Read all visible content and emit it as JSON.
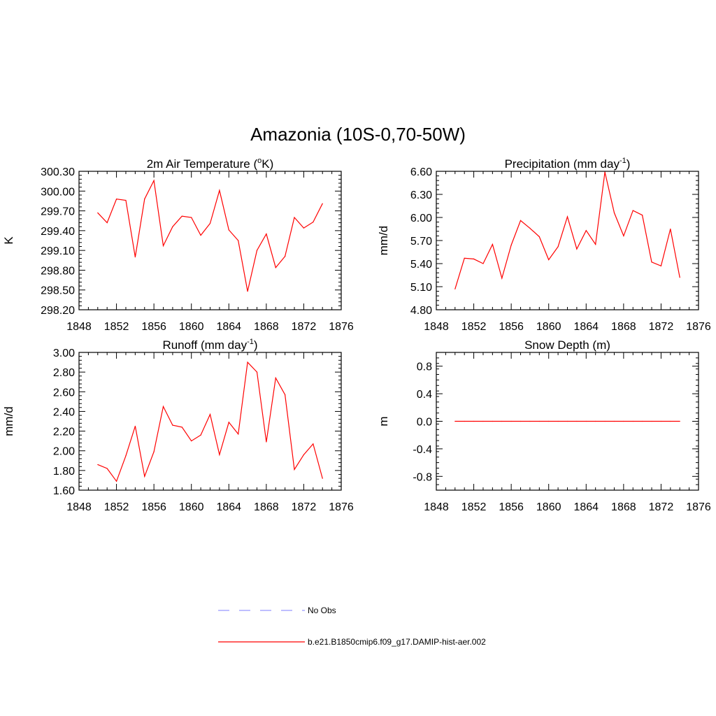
{
  "figure": {
    "title": "Amazonia (10S-0,70-50W)"
  },
  "legend": {
    "items": [
      {
        "label": "No Obs",
        "color": "#9999ff",
        "dash": true
      },
      {
        "label": "b.e21.B1850cmip6.f09_g17.DAMIP-hist-aer.002",
        "color": "#ff0000",
        "dash": false
      }
    ]
  },
  "chart_data": [
    {
      "type": "line",
      "title": "2m Air Temperature (oK)",
      "title_parts": [
        "2m Air Temperature (",
        "o",
        "K)"
      ],
      "title_sup_index": 1,
      "ylabel": "K",
      "xlim": [
        1848,
        1876
      ],
      "ylim": [
        298.2,
        300.3
      ],
      "xticks": [
        1848,
        1852,
        1856,
        1860,
        1864,
        1868,
        1872,
        1876
      ],
      "xtick_labels": [
        "1848",
        "1852",
        "1856",
        "1860",
        "1864",
        "1868",
        "1872",
        "1876"
      ],
      "yticks": [
        298.2,
        298.5,
        298.8,
        299.1,
        299.4,
        299.7,
        300.0,
        300.3
      ],
      "ytick_labels": [
        "298.20",
        "298.50",
        "298.80",
        "299.10",
        "299.40",
        "299.70",
        "300.00",
        "300.30"
      ],
      "color": "#ff0000",
      "x": [
        1850,
        1851,
        1852,
        1853,
        1854,
        1855,
        1856,
        1857,
        1858,
        1859,
        1860,
        1861,
        1862,
        1863,
        1864,
        1865,
        1866,
        1867,
        1868,
        1869,
        1870,
        1871,
        1872,
        1873,
        1874
      ],
      "y": [
        299.67,
        299.52,
        299.88,
        299.86,
        299.0,
        299.88,
        300.16,
        299.17,
        299.46,
        299.62,
        299.6,
        299.33,
        299.51,
        300.01,
        299.41,
        299.25,
        298.48,
        299.1,
        299.35,
        298.84,
        299.01,
        299.6,
        299.44,
        299.53,
        299.81
      ]
    },
    {
      "type": "line",
      "title": "Precipitation (mm day-1)",
      "title_parts": [
        "Precipitation (mm day",
        "-1",
        ")"
      ],
      "title_sup_index": 1,
      "ylabel": "mm/d",
      "xlim": [
        1848,
        1876
      ],
      "ylim": [
        4.8,
        6.6
      ],
      "xticks": [
        1848,
        1852,
        1856,
        1860,
        1864,
        1868,
        1872,
        1876
      ],
      "xtick_labels": [
        "1848",
        "1852",
        "1856",
        "1860",
        "1864",
        "1868",
        "1872",
        "1876"
      ],
      "yticks": [
        4.8,
        5.1,
        5.4,
        5.7,
        6.0,
        6.3,
        6.6
      ],
      "ytick_labels": [
        "4.80",
        "5.10",
        "5.40",
        "5.70",
        "6.00",
        "6.30",
        "6.60"
      ],
      "color": "#ff0000",
      "x": [
        1850,
        1851,
        1852,
        1853,
        1854,
        1855,
        1856,
        1857,
        1858,
        1859,
        1860,
        1861,
        1862,
        1863,
        1864,
        1865,
        1866,
        1867,
        1868,
        1869,
        1870,
        1871,
        1872,
        1873,
        1874
      ],
      "y": [
        5.07,
        5.47,
        5.46,
        5.4,
        5.65,
        5.21,
        5.64,
        5.96,
        5.86,
        5.75,
        5.45,
        5.62,
        6.01,
        5.59,
        5.83,
        5.65,
        6.59,
        6.06,
        5.76,
        6.09,
        6.03,
        5.42,
        5.37,
        5.85,
        5.22
      ]
    },
    {
      "type": "line",
      "title": "Runoff (mm day-1)",
      "title_parts": [
        "Runoff (mm day",
        "-1",
        ")"
      ],
      "title_sup_index": 1,
      "ylabel": "mm/d",
      "xlim": [
        1848,
        1876
      ],
      "ylim": [
        1.6,
        3.0
      ],
      "xticks": [
        1848,
        1852,
        1856,
        1860,
        1864,
        1868,
        1872,
        1876
      ],
      "xtick_labels": [
        "1848",
        "1852",
        "1856",
        "1860",
        "1864",
        "1868",
        "1872",
        "1876"
      ],
      "yticks": [
        1.6,
        1.8,
        2.0,
        2.2,
        2.4,
        2.6,
        2.8,
        3.0
      ],
      "ytick_labels": [
        "1.60",
        "1.80",
        "2.00",
        "2.20",
        "2.40",
        "2.60",
        "2.80",
        "3.00"
      ],
      "color": "#ff0000",
      "x": [
        1850,
        1851,
        1852,
        1853,
        1854,
        1855,
        1856,
        1857,
        1858,
        1859,
        1860,
        1861,
        1862,
        1863,
        1864,
        1865,
        1866,
        1867,
        1868,
        1869,
        1870,
        1871,
        1872,
        1873,
        1874
      ],
      "y": [
        1.86,
        1.82,
        1.69,
        1.95,
        2.25,
        1.74,
        1.99,
        2.45,
        2.26,
        2.24,
        2.1,
        2.16,
        2.37,
        1.96,
        2.29,
        2.17,
        2.9,
        2.8,
        2.09,
        2.74,
        2.57,
        1.81,
        1.96,
        2.07,
        1.72
      ]
    },
    {
      "type": "line",
      "title": "Snow Depth (m)",
      "title_parts": [
        "Snow Depth (m)"
      ],
      "title_sup_index": -1,
      "ylabel": "m",
      "xlim": [
        1848,
        1876
      ],
      "ylim": [
        -1.0,
        1.0
      ],
      "xticks": [
        1848,
        1852,
        1856,
        1860,
        1864,
        1868,
        1872,
        1876
      ],
      "xtick_labels": [
        "1848",
        "1852",
        "1856",
        "1860",
        "1864",
        "1868",
        "1872",
        "1876"
      ],
      "yticks": [
        -0.8,
        -0.4,
        0.0,
        0.4,
        0.8
      ],
      "ytick_labels": [
        "-0.8",
        "-0.4",
        "0.0",
        "0.4",
        "0.8"
      ],
      "color": "#ff0000",
      "x": [
        1850,
        1851,
        1852,
        1853,
        1854,
        1855,
        1856,
        1857,
        1858,
        1859,
        1860,
        1861,
        1862,
        1863,
        1864,
        1865,
        1866,
        1867,
        1868,
        1869,
        1870,
        1871,
        1872,
        1873,
        1874
      ],
      "y": [
        0,
        0,
        0,
        0,
        0,
        0,
        0,
        0,
        0,
        0,
        0,
        0,
        0,
        0,
        0,
        0,
        0,
        0,
        0,
        0,
        0,
        0,
        0,
        0,
        0
      ]
    }
  ]
}
